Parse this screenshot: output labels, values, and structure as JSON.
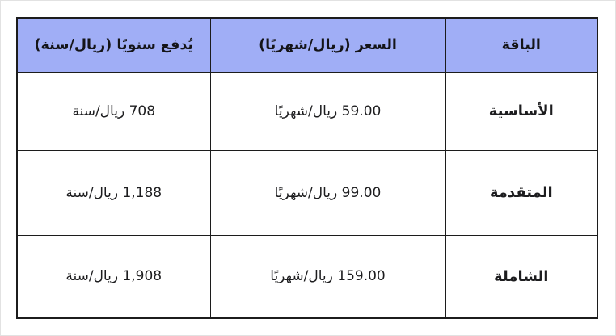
{
  "page": {
    "language": "ar",
    "direction": "rtl",
    "background_color": "#ffffff"
  },
  "table": {
    "header_background_color": "#a0aef6",
    "border_color": "#1c1c1c",
    "columns": [
      {
        "key": "package",
        "label": "الباقة"
      },
      {
        "key": "monthly_price",
        "label": "السعر (ريال/شهريًا)"
      },
      {
        "key": "yearly_price",
        "label": "يُدفع سنويًا (ريال/سنة)"
      }
    ],
    "rows": [
      {
        "package": "الأساسية",
        "monthly_price": "59.00 ريال/شهريًا",
        "yearly_price": "708 ريال/سنة"
      },
      {
        "package": "المتقدمة",
        "monthly_price": "99.00 ريال/شهريًا",
        "yearly_price": "1,188 ريال/سنة"
      },
      {
        "package": "الشاملة",
        "monthly_price": "159.00 ريال/شهريًا",
        "yearly_price": "1,908 ريال/سنة"
      }
    ]
  }
}
